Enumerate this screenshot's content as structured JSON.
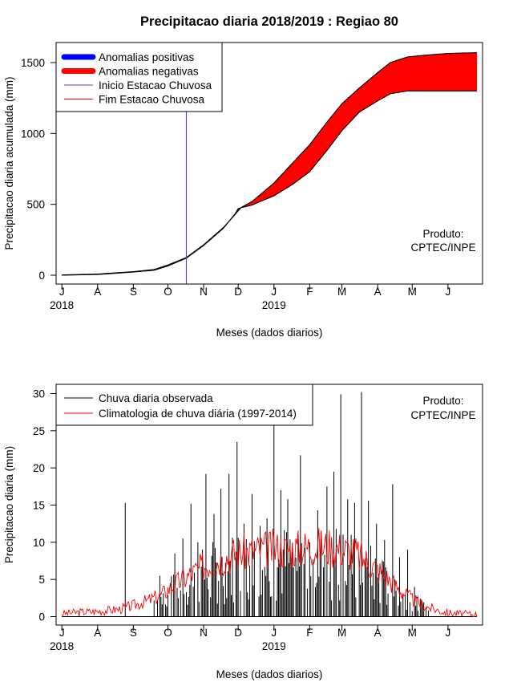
{
  "page_title": "Precipitacao diaria 2018/2019 : Regiao 80",
  "colors": {
    "positive": "#0000ff",
    "negative": "#ff0000",
    "start_line": "#4a4ac8",
    "observed": "#000000",
    "climatology": "#ff0000"
  },
  "chart_data": [
    {
      "type": "area",
      "title": "Precipitacao diaria 2018/2019 : Regiao 80",
      "xlabel": "Meses (dados diarios)",
      "ylabel": "Precipitacao diaria acumulada (mm)",
      "ylim": [
        0,
        1650
      ],
      "yticks": [
        0,
        500,
        1000,
        1500
      ],
      "xlim_days": [
        -5,
        365
      ],
      "month_ticks": [
        {
          "label": "J",
          "day": 0
        },
        {
          "label": "A",
          "day": 31
        },
        {
          "label": "S",
          "day": 62
        },
        {
          "label": "O",
          "day": 92
        },
        {
          "label": "N",
          "day": 123
        },
        {
          "label": "D",
          "day": 153
        },
        {
          "label": "J",
          "day": 184
        },
        {
          "label": "F",
          "day": 215
        },
        {
          "label": "M",
          "day": 243
        },
        {
          "label": "A",
          "day": 274
        },
        {
          "label": "M",
          "day": 304
        },
        {
          "label": "J",
          "day": 335
        }
      ],
      "year_labels": [
        {
          "label": "2018",
          "day": 0
        },
        {
          "label": "2019",
          "day": 184
        }
      ],
      "observed_cumulative": {
        "days": [
          0,
          31,
          62,
          80,
          92,
          108,
          123,
          140,
          150,
          153,
          156,
          165,
          184,
          200,
          215,
          230,
          243,
          258,
          274,
          285,
          300,
          315,
          335,
          360
        ],
        "values": [
          0,
          5,
          22,
          35,
          65,
          120,
          210,
          330,
          430,
          470,
          478,
          495,
          560,
          640,
          730,
          880,
          1020,
          1150,
          1230,
          1280,
          1300,
          1300,
          1300,
          1300
        ]
      },
      "climatology_cumulative": {
        "days": [
          0,
          31,
          62,
          80,
          92,
          108,
          123,
          140,
          150,
          153,
          156,
          165,
          184,
          200,
          215,
          230,
          243,
          258,
          274,
          285,
          300,
          315,
          335,
          360
        ],
        "values": [
          2,
          8,
          25,
          40,
          72,
          125,
          215,
          335,
          425,
          455,
          480,
          520,
          650,
          790,
          920,
          1080,
          1210,
          1320,
          1430,
          1500,
          1540,
          1552,
          1565,
          1570
        ]
      },
      "rainy_season_start_day": 108,
      "legend": [
        {
          "label": "Anomalias positivas",
          "style": "thick",
          "color": "#0000ff"
        },
        {
          "label": "Anomalias negativas",
          "style": "thick",
          "color": "#ff0000"
        },
        {
          "label": "Inicio Estacao Chuvosa",
          "style": "thin",
          "color": "#4a4ac8"
        },
        {
          "label": "Fim Estacao Chuvosa",
          "style": "thin",
          "color": "#ff0000"
        }
      ],
      "legend_position": "top-left",
      "annotation": [
        "Produto:",
        "CPTEC/INPE"
      ],
      "annotation_position": "right"
    },
    {
      "type": "line",
      "title": "",
      "xlabel": "Meses (dados diarios)",
      "ylabel": "Precipitacao diaria (mm)",
      "ylim": [
        0,
        30
      ],
      "yticks": [
        0,
        5,
        10,
        15,
        20,
        25,
        30
      ],
      "xlim_days": [
        -5,
        365
      ],
      "month_ticks": [
        {
          "label": "J",
          "day": 0
        },
        {
          "label": "A",
          "day": 31
        },
        {
          "label": "S",
          "day": 62
        },
        {
          "label": "O",
          "day": 92
        },
        {
          "label": "N",
          "day": 123
        },
        {
          "label": "D",
          "day": 153
        },
        {
          "label": "J",
          "day": 184
        },
        {
          "label": "F",
          "day": 215
        },
        {
          "label": "M",
          "day": 243
        },
        {
          "label": "A",
          "day": 274
        },
        {
          "label": "M",
          "day": 304
        },
        {
          "label": "J",
          "day": 335
        }
      ],
      "year_labels": [
        {
          "label": "2018",
          "day": 0
        },
        {
          "label": "2019",
          "day": 184
        }
      ],
      "observed_daily_peaks": [
        {
          "day": 55,
          "value": 15.3
        },
        {
          "day": 85,
          "value": 5.5
        },
        {
          "day": 98,
          "value": 8.5
        },
        {
          "day": 105,
          "value": 10.5
        },
        {
          "day": 112,
          "value": 15.2
        },
        {
          "day": 118,
          "value": 10
        },
        {
          "day": 125,
          "value": 19.2
        },
        {
          "day": 132,
          "value": 13.8
        },
        {
          "day": 138,
          "value": 17.2
        },
        {
          "day": 145,
          "value": 19.2
        },
        {
          "day": 152,
          "value": 23.5
        },
        {
          "day": 158,
          "value": 12.5
        },
        {
          "day": 165,
          "value": 16.5
        },
        {
          "day": 172,
          "value": 12.2
        },
        {
          "day": 178,
          "value": 13.2
        },
        {
          "day": 184,
          "value": 26.5
        },
        {
          "day": 190,
          "value": 17
        },
        {
          "day": 196,
          "value": 15.8
        },
        {
          "day": 207,
          "value": 21.7
        },
        {
          "day": 215,
          "value": 10
        },
        {
          "day": 222,
          "value": 14.3
        },
        {
          "day": 230,
          "value": 17.5
        },
        {
          "day": 236,
          "value": 19.5
        },
        {
          "day": 242,
          "value": 29.9
        },
        {
          "day": 248,
          "value": 15.8
        },
        {
          "day": 254,
          "value": 15.3
        },
        {
          "day": 260,
          "value": 30.2
        },
        {
          "day": 266,
          "value": 15.6
        },
        {
          "day": 273,
          "value": 12.5
        },
        {
          "day": 280,
          "value": 10.3
        },
        {
          "day": 287,
          "value": 17.8
        },
        {
          "day": 293,
          "value": 8
        },
        {
          "day": 300,
          "value": 9
        },
        {
          "day": 306,
          "value": 4
        },
        {
          "day": 312,
          "value": 2
        }
      ],
      "observed_active_days": [
        80,
        318
      ],
      "climatology": {
        "days": [
          0,
          15,
          31,
          50,
          62,
          75,
          85,
          95,
          105,
          115,
          125,
          135,
          145,
          155,
          165,
          175,
          184,
          195,
          205,
          215,
          225,
          235,
          245,
          255,
          265,
          275,
          285,
          295,
          305,
          315,
          325,
          335,
          345,
          360
        ],
        "values": [
          0.4,
          0.6,
          0.7,
          1.0,
          1.5,
          2.2,
          2.8,
          4.0,
          5.0,
          6.0,
          7.0,
          7.6,
          8.2,
          8.6,
          8.8,
          9.0,
          9.2,
          9.0,
          9.2,
          9.4,
          9.5,
          9.3,
          9.0,
          8.5,
          7.4,
          6.2,
          4.8,
          3.4,
          2.2,
          1.4,
          0.9,
          0.5,
          0.4,
          0.3
        ]
      },
      "legend": [
        {
          "label": "Chuva diaria observada",
          "color": "#000000"
        },
        {
          "label": "Climatologia de chuva diária (1997-2014)",
          "color": "#ff0000"
        }
      ],
      "legend_position": "top-left",
      "annotation": [
        "Produto:",
        "CPTEC/INPE"
      ],
      "annotation_position": "top-right"
    }
  ]
}
